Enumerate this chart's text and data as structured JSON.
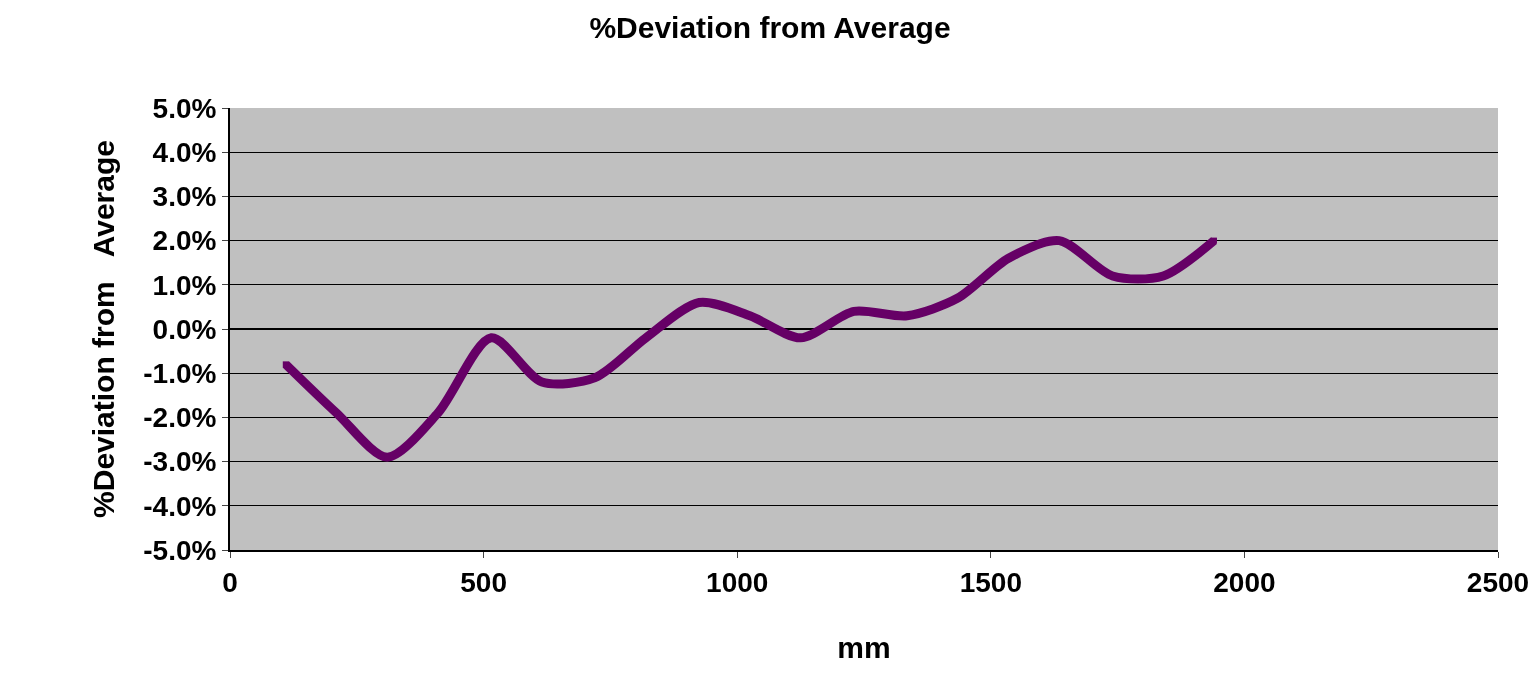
{
  "chart_data": {
    "type": "line",
    "title": "%Deviation from Average",
    "xlabel": "mm",
    "ylabel": "%Deviation from   Average",
    "series": [
      {
        "color": "#660066",
        "x": [
          110,
          210,
          310,
          410,
          515,
          615,
          720,
          820,
          925,
          1025,
          1125,
          1230,
          1335,
          1435,
          1535,
          1635,
          1740,
          1840,
          1940
        ],
        "values": [
          -0.8,
          -1.9,
          -2.9,
          -1.9,
          -0.2,
          -1.2,
          -1.1,
          -0.2,
          0.6,
          0.3,
          -0.2,
          0.4,
          0.3,
          0.7,
          1.6,
          2.0,
          1.2,
          1.2,
          2.0
        ]
      }
    ],
    "xlim": [
      0,
      2500
    ],
    "xticks": [
      0,
      500,
      1000,
      1500,
      2000,
      2500
    ],
    "ylim": [
      -5,
      5
    ],
    "yticks": [
      {
        "value": -5,
        "label": "-5.0%"
      },
      {
        "value": -4,
        "label": "-4.0%"
      },
      {
        "value": -3,
        "label": "-3.0%"
      },
      {
        "value": -2,
        "label": "-2.0%"
      },
      {
        "value": -1,
        "label": "-1.0%"
      },
      {
        "value": 0,
        "label": "0.0%"
      },
      {
        "value": 1,
        "label": "1.0%"
      },
      {
        "value": 2,
        "label": "2.0%"
      },
      {
        "value": 3,
        "label": "3.0%"
      },
      {
        "value": 4,
        "label": "4.0%"
      },
      {
        "value": 5,
        "label": "5.0%"
      }
    ],
    "grid": "y",
    "marker": "square",
    "line_style": "solid",
    "legend": false
  }
}
